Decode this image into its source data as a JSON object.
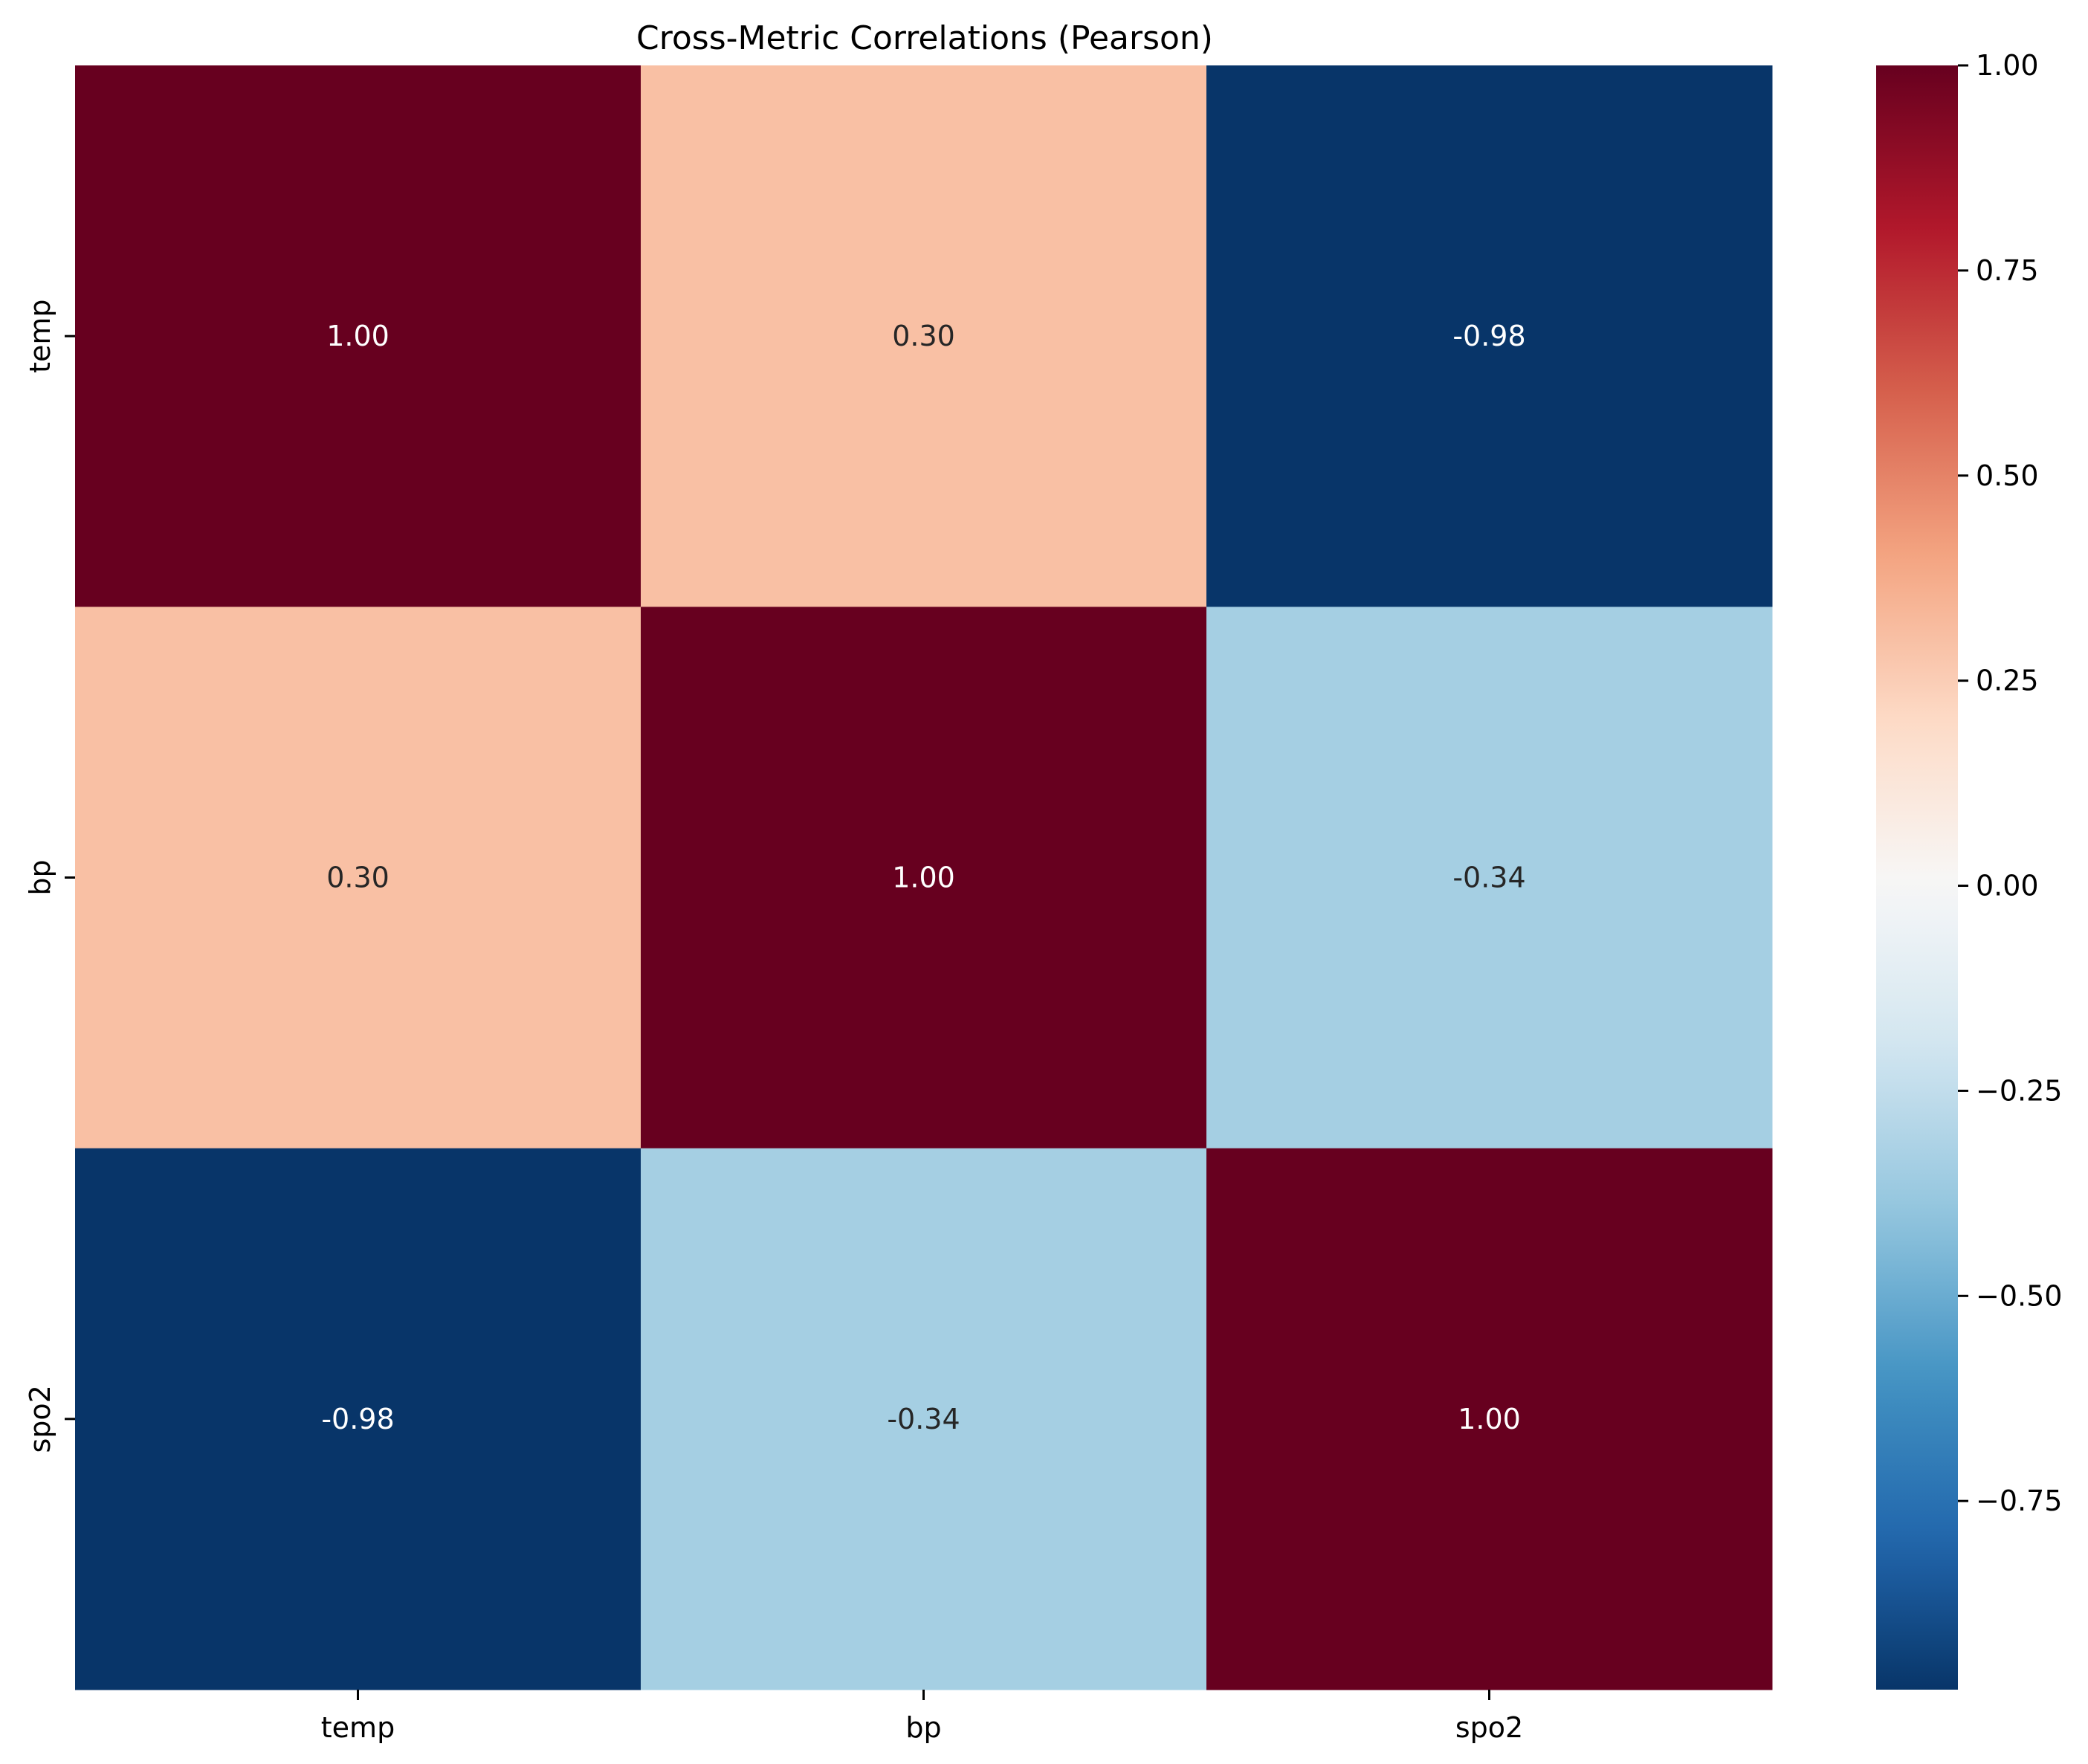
{
  "chart_data": {
    "type": "heatmap",
    "title": "Cross-Metric Correlations (Pearson)",
    "xlabel": "",
    "ylabel": "",
    "x_categories": [
      "temp",
      "bp",
      "spo2"
    ],
    "y_categories": [
      "temp",
      "bp",
      "spo2"
    ],
    "values": [
      [
        1.0,
        0.3,
        -0.98
      ],
      [
        0.3,
        1.0,
        -0.34
      ],
      [
        -0.98,
        -0.34,
        1.0
      ]
    ],
    "value_labels": [
      [
        "1.00",
        "0.30",
        "-0.98"
      ],
      [
        "0.30",
        "1.00",
        "-0.34"
      ],
      [
        "-0.98",
        "-0.34",
        "1.00"
      ]
    ],
    "colormap": "RdBu_r",
    "color_range": [
      -0.98,
      1.0
    ],
    "colorbar": {
      "ticks": [
        1.0,
        0.75,
        0.5,
        0.25,
        0.0,
        -0.25,
        -0.5,
        -0.75
      ],
      "tick_labels": [
        "1.00",
        "0.75",
        "0.50",
        "0.25",
        "0.00",
        "−0.25",
        "−0.50",
        "−0.75"
      ]
    },
    "grid": false,
    "legend": "colorbar-right"
  }
}
